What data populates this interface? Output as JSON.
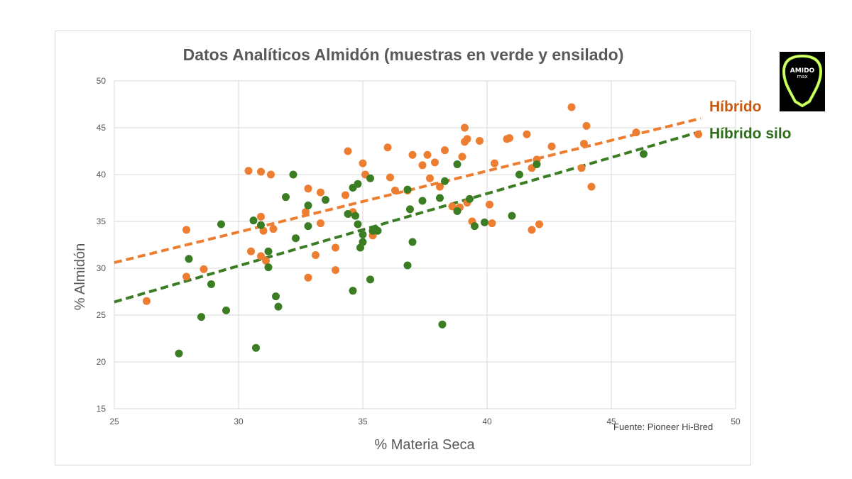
{
  "chart_data": {
    "type": "scatter",
    "title": "Datos Analíticos Almidón (muestras en verde y ensilado)",
    "xlabel": "% Materia Seca",
    "ylabel": "% Almidón",
    "xlim": [
      25,
      50
    ],
    "ylim": [
      15,
      50
    ],
    "xticks": [
      25,
      30,
      35,
      40,
      45,
      50
    ],
    "yticks": [
      15,
      20,
      25,
      30,
      35,
      40,
      45,
      50
    ],
    "grid": "horizontal",
    "source": "Fuente: Pioneer Hi-Bred",
    "series": [
      {
        "name": "Híbrido",
        "color": "#ED7D31",
        "trendline": {
          "x": [
            25,
            48.6
          ],
          "y": [
            30.6,
            46.0
          ]
        },
        "points": [
          [
            26.3,
            26.5
          ],
          [
            27.9,
            34.1
          ],
          [
            27.9,
            29.1
          ],
          [
            28.6,
            29.9
          ],
          [
            30.4,
            40.4
          ],
          [
            30.5,
            31.8
          ],
          [
            30.9,
            40.3
          ],
          [
            30.9,
            35.5
          ],
          [
            30.9,
            31.3
          ],
          [
            31.0,
            34.0
          ],
          [
            31.1,
            30.8
          ],
          [
            31.3,
            40.0
          ],
          [
            31.4,
            34.2
          ],
          [
            32.7,
            36.0
          ],
          [
            32.8,
            38.5
          ],
          [
            32.8,
            29.0
          ],
          [
            33.1,
            31.4
          ],
          [
            33.3,
            34.8
          ],
          [
            33.3,
            38.1
          ],
          [
            33.9,
            32.2
          ],
          [
            33.9,
            29.8
          ],
          [
            34.3,
            37.8
          ],
          [
            34.4,
            42.5
          ],
          [
            34.6,
            36.0
          ],
          [
            35.0,
            41.2
          ],
          [
            35.1,
            40.0
          ],
          [
            35.4,
            33.5
          ],
          [
            35.5,
            34.0
          ],
          [
            36.0,
            42.9
          ],
          [
            36.1,
            39.7
          ],
          [
            36.3,
            38.3
          ],
          [
            36.8,
            38.3
          ],
          [
            37.0,
            42.1
          ],
          [
            37.4,
            41.0
          ],
          [
            37.6,
            42.1
          ],
          [
            37.7,
            39.6
          ],
          [
            37.9,
            41.3
          ],
          [
            38.1,
            38.7
          ],
          [
            38.3,
            42.6
          ],
          [
            38.6,
            36.6
          ],
          [
            38.9,
            36.5
          ],
          [
            39.0,
            41.9
          ],
          [
            39.1,
            45.0
          ],
          [
            39.1,
            43.5
          ],
          [
            39.2,
            43.8
          ],
          [
            39.2,
            37.0
          ],
          [
            39.4,
            35.0
          ],
          [
            39.7,
            43.6
          ],
          [
            40.1,
            36.8
          ],
          [
            40.2,
            34.8
          ],
          [
            40.3,
            41.2
          ],
          [
            40.8,
            43.8
          ],
          [
            40.9,
            43.9
          ],
          [
            41.6,
            44.3
          ],
          [
            41.8,
            40.7
          ],
          [
            41.8,
            34.1
          ],
          [
            42.0,
            41.6
          ],
          [
            42.1,
            34.7
          ],
          [
            42.6,
            43.0
          ],
          [
            43.4,
            47.2
          ],
          [
            43.8,
            40.7
          ],
          [
            43.9,
            43.3
          ],
          [
            44.0,
            45.2
          ],
          [
            44.2,
            38.7
          ],
          [
            46.0,
            44.5
          ],
          [
            48.5,
            44.3
          ]
        ]
      },
      {
        "name": "Híbrido silo",
        "color": "#3A7D22",
        "trendline": {
          "x": [
            25,
            48.6
          ],
          "y": [
            26.4,
            44.6
          ]
        },
        "points": [
          [
            27.6,
            20.9
          ],
          [
            28.0,
            31.0
          ],
          [
            28.5,
            24.8
          ],
          [
            28.9,
            28.3
          ],
          [
            29.3,
            34.7
          ],
          [
            29.5,
            25.5
          ],
          [
            30.6,
            35.1
          ],
          [
            30.7,
            21.5
          ],
          [
            30.9,
            34.6
          ],
          [
            31.2,
            30.1
          ],
          [
            31.2,
            31.8
          ],
          [
            31.5,
            27.0
          ],
          [
            31.6,
            25.9
          ],
          [
            31.9,
            37.6
          ],
          [
            32.2,
            40.0
          ],
          [
            32.3,
            33.2
          ],
          [
            32.8,
            34.5
          ],
          [
            32.8,
            36.7
          ],
          [
            33.5,
            37.3
          ],
          [
            34.4,
            35.8
          ],
          [
            34.6,
            38.6
          ],
          [
            34.6,
            27.6
          ],
          [
            34.7,
            35.6
          ],
          [
            34.8,
            34.7
          ],
          [
            34.8,
            39.0
          ],
          [
            34.9,
            32.2
          ],
          [
            35.0,
            33.6
          ],
          [
            35.0,
            32.8
          ],
          [
            35.3,
            39.6
          ],
          [
            35.3,
            28.8
          ],
          [
            35.4,
            34.0
          ],
          [
            35.5,
            34.2
          ],
          [
            35.6,
            34.0
          ],
          [
            36.8,
            38.4
          ],
          [
            36.8,
            30.3
          ],
          [
            36.9,
            36.3
          ],
          [
            37.0,
            32.8
          ],
          [
            37.4,
            37.2
          ],
          [
            38.1,
            37.5
          ],
          [
            38.2,
            24.0
          ],
          [
            38.3,
            39.3
          ],
          [
            38.8,
            41.1
          ],
          [
            38.8,
            36.1
          ],
          [
            39.3,
            37.4
          ],
          [
            39.5,
            34.5
          ],
          [
            39.9,
            34.9
          ],
          [
            41.0,
            35.6
          ],
          [
            41.3,
            40.0
          ],
          [
            42.0,
            41.1
          ],
          [
            46.3,
            42.2
          ]
        ]
      }
    ]
  },
  "logo": {
    "text_top": "AMIDO",
    "text_bottom": "max"
  }
}
